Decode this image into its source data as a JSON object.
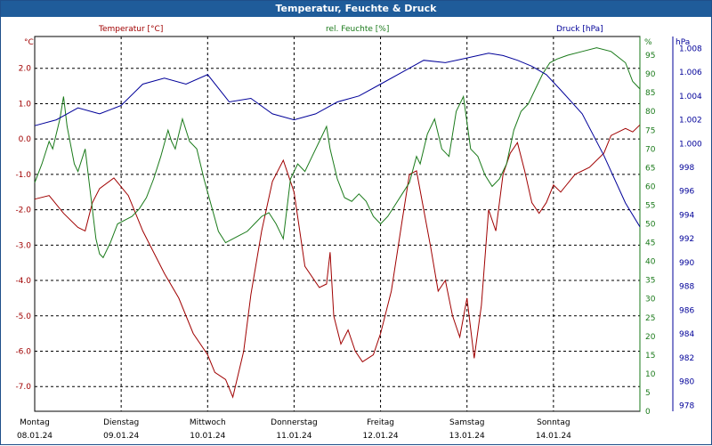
{
  "window": {
    "title": "Temperatur, Feuchte & Druck"
  },
  "colors": {
    "temperature": "#a00000",
    "humidity": "#1a7a1a",
    "pressure": "#000099",
    "grid": "#000000"
  },
  "axes": {
    "left_unit": "°C",
    "right_humidity_unit": "%",
    "right_pressure_unit": "hPa",
    "left_ticks": [
      "2.0",
      "1.0",
      "0.0",
      "-1.0",
      "-2.0",
      "-3.0",
      "-4.0",
      "-5.0",
      "-6.0",
      "-7.0"
    ],
    "humidity_ticks": [
      "95",
      "90",
      "85",
      "80",
      "75",
      "70",
      "65",
      "60",
      "55",
      "50",
      "45",
      "40",
      "35",
      "30",
      "25",
      "20",
      "15",
      "10",
      "5",
      "0"
    ],
    "pressure_ticks": [
      "1.008",
      "1.006",
      "1.004",
      "1.002",
      "1.000",
      "998",
      "996",
      "994",
      "992",
      "990",
      "988",
      "986",
      "984",
      "982",
      "980",
      "978"
    ],
    "x_days": [
      {
        "day": "Montag",
        "date": "08.01.24"
      },
      {
        "day": "Dienstag",
        "date": "09.01.24"
      },
      {
        "day": "Mittwoch",
        "date": "10.01.24"
      },
      {
        "day": "Donnerstag",
        "date": "11.01.24"
      },
      {
        "day": "Freitag",
        "date": "12.01.24"
      },
      {
        "day": "Samstag",
        "date": "13.01.24"
      },
      {
        "day": "Sonntag",
        "date": "14.01.24"
      }
    ]
  },
  "chart_data": {
    "type": "line",
    "title": "Temperatur, Feuchte & Druck",
    "grid": true,
    "x_range_hours": [
      0,
      168
    ],
    "series": [
      {
        "name": "Temperatur [°C]",
        "axis": "left",
        "ylim": [
          -7.7,
          2.9
        ],
        "points": [
          [
            0,
            -1.7
          ],
          [
            4,
            -1.6
          ],
          [
            8,
            -2.1
          ],
          [
            12,
            -2.5
          ],
          [
            14,
            -2.6
          ],
          [
            16,
            -1.8
          ],
          [
            18,
            -1.4
          ],
          [
            22,
            -1.1
          ],
          [
            26,
            -1.6
          ],
          [
            30,
            -2.6
          ],
          [
            36,
            -3.8
          ],
          [
            40,
            -4.5
          ],
          [
            44,
            -5.5
          ],
          [
            48,
            -6.1
          ],
          [
            50,
            -6.6
          ],
          [
            53,
            -6.8
          ],
          [
            55,
            -7.3
          ],
          [
            58,
            -6.0
          ],
          [
            60,
            -4.4
          ],
          [
            63,
            -2.6
          ],
          [
            66,
            -1.2
          ],
          [
            69,
            -0.6
          ],
          [
            72,
            -1.5
          ],
          [
            75,
            -3.6
          ],
          [
            79,
            -4.2
          ],
          [
            81,
            -4.1
          ],
          [
            82,
            -3.2
          ],
          [
            83,
            -5.0
          ],
          [
            85,
            -5.8
          ],
          [
            87,
            -5.4
          ],
          [
            89,
            -6.0
          ],
          [
            91,
            -6.3
          ],
          [
            94,
            -6.1
          ],
          [
            96,
            -5.5
          ],
          [
            99,
            -4.3
          ],
          [
            102,
            -2.3
          ],
          [
            104,
            -1.0
          ],
          [
            106,
            -0.9
          ],
          [
            108,
            -2.0
          ],
          [
            110,
            -3.1
          ],
          [
            112,
            -4.3
          ],
          [
            114,
            -4.0
          ],
          [
            116,
            -5.0
          ],
          [
            118,
            -5.6
          ],
          [
            120,
            -4.5
          ],
          [
            122,
            -6.2
          ],
          [
            124,
            -4.7
          ],
          [
            126,
            -2.0
          ],
          [
            128,
            -2.6
          ],
          [
            130,
            -1.0
          ],
          [
            132,
            -0.4
          ],
          [
            134,
            -0.1
          ],
          [
            136,
            -0.9
          ],
          [
            138,
            -1.8
          ],
          [
            140,
            -2.1
          ],
          [
            142,
            -1.8
          ],
          [
            144,
            -1.3
          ],
          [
            146,
            -1.5
          ],
          [
            150,
            -1.0
          ],
          [
            154,
            -0.8
          ],
          [
            158,
            -0.4
          ],
          [
            160,
            0.1
          ],
          [
            164,
            0.3
          ],
          [
            166,
            0.2
          ],
          [
            168,
            0.4
          ]
        ]
      },
      {
        "name": "rel. Feuchte [%]",
        "axis": "right",
        "ylim": [
          0,
          100
        ],
        "points": [
          [
            0,
            61
          ],
          [
            2,
            66
          ],
          [
            4,
            72
          ],
          [
            5,
            70
          ],
          [
            7,
            78
          ],
          [
            8,
            84
          ],
          [
            9,
            76
          ],
          [
            11,
            66
          ],
          [
            12,
            64
          ],
          [
            14,
            70
          ],
          [
            15,
            62
          ],
          [
            17,
            46
          ],
          [
            18,
            42
          ],
          [
            19,
            41
          ],
          [
            21,
            45
          ],
          [
            23,
            50
          ],
          [
            25,
            51
          ],
          [
            27,
            52
          ],
          [
            29,
            54
          ],
          [
            31,
            57
          ],
          [
            33,
            62
          ],
          [
            35,
            68
          ],
          [
            37,
            75
          ],
          [
            38,
            72
          ],
          [
            39,
            70
          ],
          [
            41,
            78
          ],
          [
            43,
            72
          ],
          [
            45,
            70
          ],
          [
            47,
            62
          ],
          [
            49,
            55
          ],
          [
            51,
            48
          ],
          [
            53,
            45
          ],
          [
            55,
            46
          ],
          [
            57,
            47
          ],
          [
            59,
            48
          ],
          [
            61,
            50
          ],
          [
            63,
            52
          ],
          [
            65,
            53
          ],
          [
            67,
            50
          ],
          [
            69,
            46
          ],
          [
            71,
            62
          ],
          [
            73,
            66
          ],
          [
            75,
            64
          ],
          [
            77,
            68
          ],
          [
            79,
            72
          ],
          [
            81,
            76
          ],
          [
            82,
            70
          ],
          [
            84,
            62
          ],
          [
            86,
            57
          ],
          [
            88,
            56
          ],
          [
            90,
            58
          ],
          [
            92,
            56
          ],
          [
            94,
            52
          ],
          [
            96,
            50
          ],
          [
            98,
            52
          ],
          [
            100,
            55
          ],
          [
            102,
            58
          ],
          [
            104,
            61
          ],
          [
            106,
            68
          ],
          [
            107,
            66
          ],
          [
            109,
            74
          ],
          [
            111,
            78
          ],
          [
            113,
            70
          ],
          [
            115,
            68
          ],
          [
            117,
            80
          ],
          [
            119,
            84
          ],
          [
            121,
            70
          ],
          [
            123,
            68
          ],
          [
            125,
            63
          ],
          [
            127,
            60
          ],
          [
            129,
            62
          ],
          [
            131,
            66
          ],
          [
            133,
            75
          ],
          [
            135,
            80
          ],
          [
            137,
            82
          ],
          [
            139,
            86
          ],
          [
            141,
            90
          ],
          [
            143,
            93
          ],
          [
            145,
            94
          ],
          [
            148,
            95
          ],
          [
            152,
            96
          ],
          [
            156,
            97
          ],
          [
            160,
            96
          ],
          [
            164,
            93
          ],
          [
            166,
            88
          ],
          [
            168,
            86
          ]
        ]
      },
      {
        "name": "Druck [hPa]",
        "axis": "right",
        "ylim": [
          977.5,
          1009.0
        ],
        "points": [
          [
            0,
            1001.5
          ],
          [
            6,
            1002.0
          ],
          [
            12,
            1003.0
          ],
          [
            18,
            1002.5
          ],
          [
            24,
            1003.2
          ],
          [
            30,
            1005.0
          ],
          [
            36,
            1005.5
          ],
          [
            42,
            1005.0
          ],
          [
            48,
            1005.8
          ],
          [
            54,
            1003.5
          ],
          [
            60,
            1003.8
          ],
          [
            66,
            1002.5
          ],
          [
            72,
            1002.0
          ],
          [
            78,
            1002.5
          ],
          [
            84,
            1003.5
          ],
          [
            90,
            1004.0
          ],
          [
            96,
            1005.0
          ],
          [
            102,
            1006.0
          ],
          [
            108,
            1007.0
          ],
          [
            114,
            1006.8
          ],
          [
            120,
            1007.2
          ],
          [
            126,
            1007.6
          ],
          [
            130,
            1007.4
          ],
          [
            134,
            1007.0
          ],
          [
            138,
            1006.5
          ],
          [
            142,
            1005.8
          ],
          [
            146,
            1004.5
          ],
          [
            152,
            1002.5
          ],
          [
            158,
            999.0
          ],
          [
            164,
            995.0
          ],
          [
            168,
            993.0
          ]
        ]
      }
    ]
  }
}
